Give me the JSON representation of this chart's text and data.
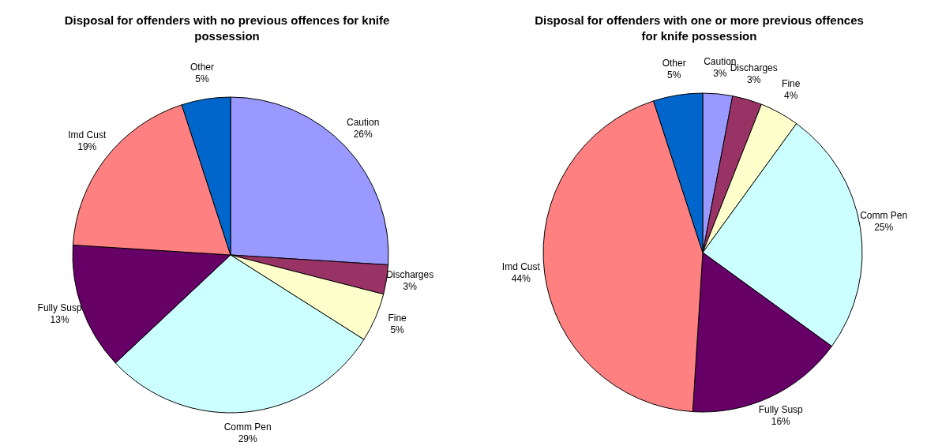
{
  "chart_data": [
    {
      "type": "pie",
      "title": "Disposal for offenders with no previous offences for knife possession",
      "categories": [
        "Caution",
        "Discharges",
        "Fine",
        "Comm Pen",
        "Fully Susp",
        "Imd Cust",
        "Other"
      ],
      "values": [
        26,
        3,
        5,
        29,
        13,
        19,
        5
      ],
      "value_labels": [
        "26%",
        "3%",
        "5%",
        "29%",
        "13%",
        "19%",
        "5%"
      ],
      "colors": [
        "#9999ff",
        "#993366",
        "#ffffcc",
        "#ccffff",
        "#660066",
        "#ff8080",
        "#0066cc"
      ],
      "legend": false
    },
    {
      "type": "pie",
      "title": "Disposal for offenders with one or more previous offences for knife possession",
      "categories": [
        "Caution",
        "Discharges",
        "Fine",
        "Comm Pen",
        "Fully Susp",
        "Imd Cust",
        "Other"
      ],
      "values": [
        3,
        3,
        4,
        25,
        16,
        44,
        5
      ],
      "value_labels": [
        "3%",
        "3%",
        "4%",
        "25%",
        "16%",
        "44%",
        "5%"
      ],
      "colors": [
        "#9999ff",
        "#993366",
        "#ffffcc",
        "#ccffff",
        "#660066",
        "#ff8080",
        "#0066cc"
      ],
      "legend": false
    }
  ]
}
